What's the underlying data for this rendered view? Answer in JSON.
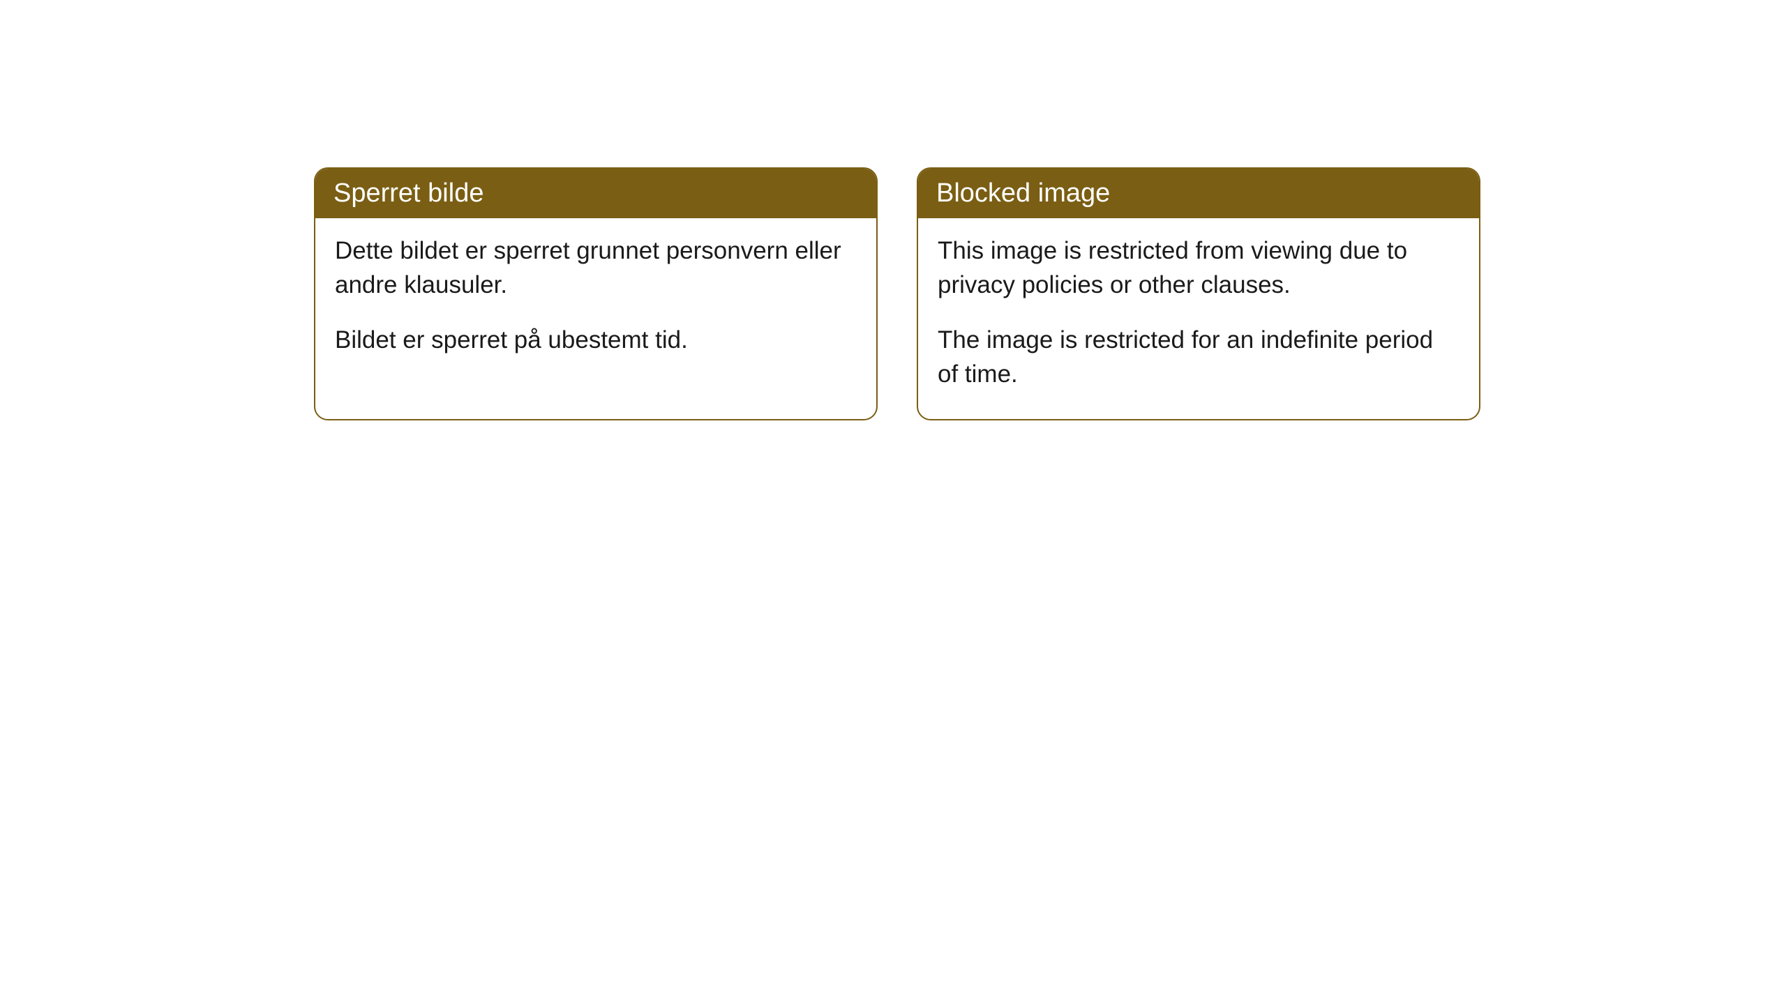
{
  "cards": [
    {
      "title": "Sperret bilde",
      "paragraph1": "Dette bildet er sperret grunnet personvern eller andre klausuler.",
      "paragraph2": "Bildet er sperret på ubestemt tid."
    },
    {
      "title": "Blocked image",
      "paragraph1": "This image is restricted from viewing due to privacy policies or other clauses.",
      "paragraph2": "The image is restricted for an indefinite period of time."
    }
  ],
  "styling": {
    "header_bg_color": "#7a5e13",
    "header_text_color": "#ffffff",
    "border_color": "#7a5e13",
    "body_bg_color": "#ffffff",
    "body_text_color": "#1a1a1a",
    "border_radius": 20,
    "title_fontsize": 38,
    "body_fontsize": 35
  }
}
